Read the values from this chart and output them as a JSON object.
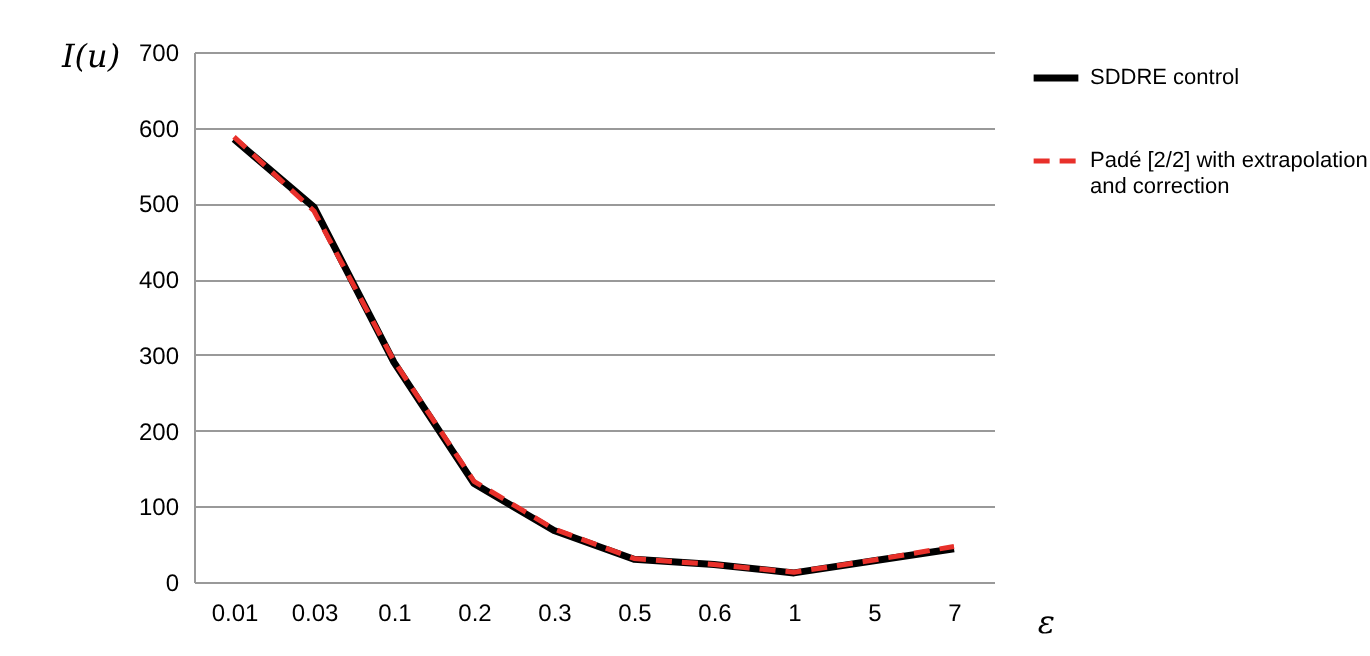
{
  "chart_data": {
    "type": "line",
    "xlabel": "ε",
    "ylabel": "I(u)",
    "categories": [
      "0.01",
      "0.03",
      "0.1",
      "0.2",
      "0.3",
      "0.5",
      "0.6",
      "1",
      "5",
      "7"
    ],
    "series": [
      {
        "name": "SDDRE control",
        "color": "#000000",
        "line_style": "solid",
        "values": [
          585,
          495,
          290,
          130,
          68,
          30,
          23,
          12,
          28,
          44
        ]
      },
      {
        "name": "Padé [2/2] with extrapolation and correction",
        "color": "#e8302a",
        "line_style": "dashed",
        "values": [
          588,
          490,
          292,
          133,
          70,
          31,
          23,
          13,
          29,
          47
        ]
      }
    ],
    "ylim": [
      0,
      700
    ],
    "yticks": [
      0,
      100,
      200,
      300,
      400,
      500,
      600,
      700
    ],
    "grid": "y",
    "legend": "right",
    "marker": "none"
  }
}
